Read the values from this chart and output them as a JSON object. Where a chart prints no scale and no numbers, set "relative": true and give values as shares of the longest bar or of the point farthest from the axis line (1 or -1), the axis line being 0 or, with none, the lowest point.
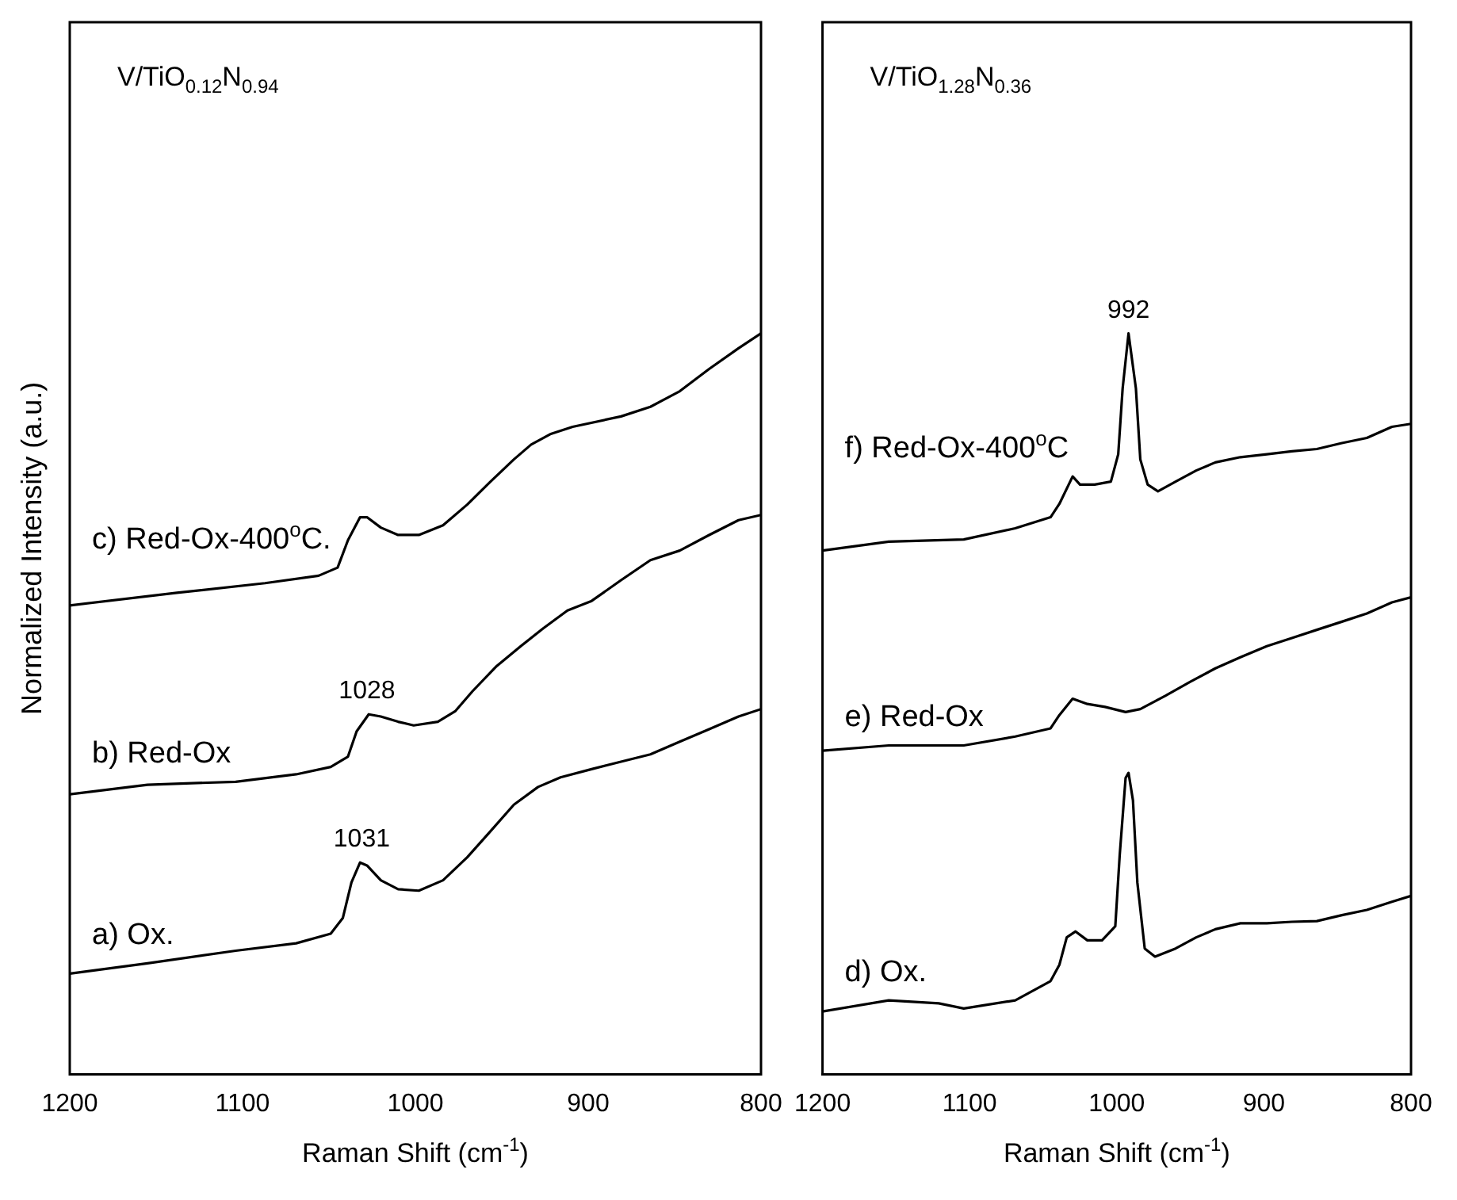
{
  "chart_data": [
    {
      "type": "line",
      "relative": true,
      "marker": "none",
      "title": "V/TiO$_{0.12}$N$_{0.94}$",
      "xlabel": "Raman Shift (cm$^{-1}$)",
      "ylabel": "Normalized Intensity (a.u.)",
      "xlim": [
        1200,
        800
      ],
      "xticks": [
        1200,
        1100,
        1000,
        900,
        800
      ],
      "annotations": [
        {
          "text": "1031",
          "x": 1031,
          "y": 0.286
        },
        {
          "text": "1028",
          "x": 1028,
          "y": 0.486
        }
      ],
      "series": [
        {
          "name": "a) Ox.",
          "color": "#000000",
          "x": [
            1200,
            1155,
            1104,
            1069,
            1049,
            1042,
            1037,
            1032,
            1028,
            1020,
            1010,
            998,
            984,
            970,
            957,
            943,
            929,
            916,
            898,
            881,
            864,
            847,
            830,
            813,
            800
          ],
          "values": [
            0.136,
            0.15,
            0.167,
            0.177,
            0.19,
            0.211,
            0.259,
            0.286,
            0.282,
            0.262,
            0.25,
            0.248,
            0.262,
            0.293,
            0.327,
            0.364,
            0.388,
            0.401,
            0.412,
            0.422,
            0.432,
            0.449,
            0.466,
            0.483,
            0.493
          ]
        },
        {
          "name": "b) Red-Ox",
          "color": "#000000",
          "x": [
            1200,
            1155,
            1104,
            1069,
            1049,
            1039,
            1034,
            1027,
            1020,
            1010,
            1001,
            987,
            977,
            967,
            953,
            939,
            926,
            912,
            898,
            881,
            864,
            847,
            830,
            813,
            800
          ],
          "values": [
            0.378,
            0.391,
            0.395,
            0.405,
            0.415,
            0.429,
            0.463,
            0.486,
            0.483,
            0.476,
            0.471,
            0.476,
            0.49,
            0.517,
            0.551,
            0.578,
            0.602,
            0.626,
            0.639,
            0.667,
            0.694,
            0.707,
            0.728,
            0.748,
            0.755
          ]
        },
        {
          "name": "c) Red-Ox-400$^{o}$C.",
          "color": "#000000",
          "x": [
            1200,
            1138,
            1087,
            1056,
            1045,
            1039,
            1032,
            1028,
            1020,
            1010,
            998,
            984,
            970,
            957,
            943,
            933,
            922,
            909,
            881,
            864,
            847,
            830,
            813,
            800
          ],
          "values": [
            0.633,
            0.65,
            0.663,
            0.673,
            0.684,
            0.721,
            0.752,
            0.752,
            0.738,
            0.728,
            0.728,
            0.741,
            0.769,
            0.799,
            0.83,
            0.85,
            0.864,
            0.874,
            0.888,
            0.901,
            0.922,
            0.952,
            0.98,
            1.0
          ]
        }
      ]
    },
    {
      "type": "line",
      "relative": true,
      "marker": "none",
      "title": "V/TiO$_{1.28}$N$_{0.36}$",
      "xlabel": "Raman Shift (cm$^{-1}$)",
      "xlim": [
        1200,
        800
      ],
      "xticks": [
        1200,
        1100,
        1000,
        900,
        800
      ],
      "annotations": [
        {
          "text": "992",
          "x": 992,
          "y": 1.0
        }
      ],
      "series": [
        {
          "name": "d) Ox.",
          "color": "#000000",
          "x": [
            1200,
            1155,
            1121,
            1104,
            1069,
            1045,
            1039,
            1034,
            1028,
            1020,
            1010,
            1001,
            998,
            994,
            992,
            989,
            986,
            981,
            974,
            960,
            946,
            933,
            916,
            898,
            881,
            864,
            847,
            830,
            813,
            800
          ],
          "values": [
            0.085,
            0.1,
            0.096,
            0.089,
            0.1,
            0.126,
            0.148,
            0.185,
            0.193,
            0.181,
            0.181,
            0.2,
            0.296,
            0.4,
            0.407,
            0.37,
            0.259,
            0.17,
            0.159,
            0.17,
            0.185,
            0.196,
            0.204,
            0.204,
            0.206,
            0.207,
            0.215,
            0.222,
            0.233,
            0.241
          ]
        },
        {
          "name": "e) Red-Ox",
          "color": "#000000",
          "x": [
            1200,
            1155,
            1104,
            1069,
            1045,
            1039,
            1030,
            1020,
            1008,
            994,
            984,
            967,
            950,
            933,
            916,
            898,
            881,
            864,
            847,
            830,
            813,
            800
          ],
          "values": [
            0.437,
            0.444,
            0.444,
            0.456,
            0.467,
            0.485,
            0.507,
            0.5,
            0.496,
            0.489,
            0.493,
            0.511,
            0.53,
            0.548,
            0.563,
            0.578,
            0.589,
            0.6,
            0.611,
            0.622,
            0.637,
            0.644
          ]
        },
        {
          "name": "f) Red-Ox-400$^{o}$C",
          "color": "#000000",
          "x": [
            1200,
            1155,
            1104,
            1069,
            1045,
            1039,
            1030,
            1025,
            1015,
            1004,
            999,
            996,
            992,
            987,
            984,
            979,
            972,
            960,
            946,
            933,
            916,
            898,
            881,
            864,
            847,
            830,
            813,
            800
          ],
          "values": [
            0.707,
            0.719,
            0.722,
            0.737,
            0.752,
            0.77,
            0.807,
            0.796,
            0.796,
            0.8,
            0.837,
            0.926,
            1.0,
            0.926,
            0.83,
            0.796,
            0.787,
            0.8,
            0.815,
            0.826,
            0.833,
            0.837,
            0.841,
            0.844,
            0.852,
            0.859,
            0.874,
            0.878
          ]
        }
      ]
    }
  ]
}
